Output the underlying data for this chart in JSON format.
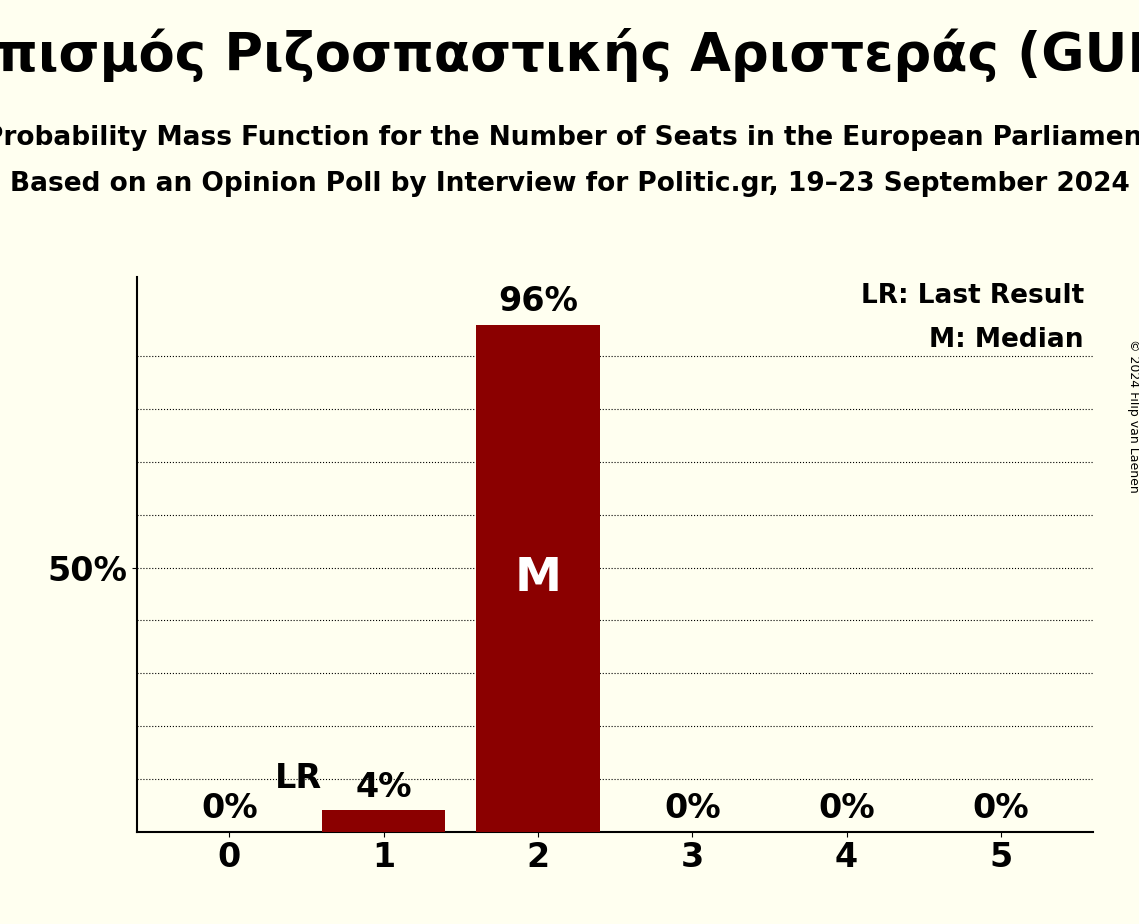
{
  "title_greek": "Συνασπισμός Ριζοσπαστικής Αριστεράς (GUE/NGL)",
  "subtitle1": "Probability Mass Function for the Number of Seats in the European Parliament",
  "subtitle2": "Based on an Opinion Poll by Interview for Politic.gr, 19–23 September 2024",
  "copyright": "© 2024 Filip van Laenen",
  "categories": [
    0,
    1,
    2,
    3,
    4,
    5
  ],
  "values": [
    0.0,
    0.04,
    0.96,
    0.0,
    0.0,
    0.0
  ],
  "bar_color": "#8B0000",
  "background_color": "#FFFFF0",
  "text_color": "#000000",
  "median_bar": 2,
  "lr_bar": 1,
  "ylim": [
    0,
    1.05
  ],
  "legend_lr": "LR: Last Result",
  "legend_m": "M: Median",
  "title_fontsize": 38,
  "subtitle_fontsize": 19,
  "bar_label_fontsize": 24,
  "axis_label_fontsize": 24,
  "tick_fontsize": 24,
  "legend_fontsize": 19,
  "copyright_fontsize": 9
}
